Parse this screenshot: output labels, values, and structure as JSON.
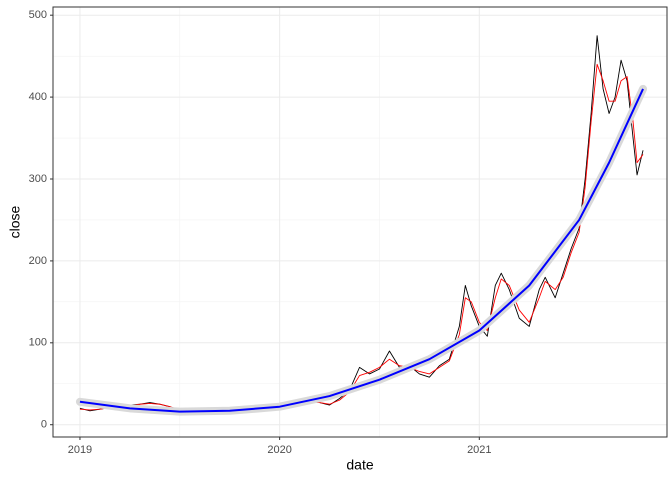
{
  "chart_data": {
    "type": "line",
    "x_label": "date",
    "y_label": "close",
    "xlim": [
      2018.865,
      2021.94
    ],
    "xticks": [
      2019,
      2020,
      2021
    ],
    "ylim": [
      -15,
      510
    ],
    "yticks": [
      0,
      100,
      200,
      300,
      400,
      500
    ],
    "grid": true,
    "x": [
      2019.0,
      2019.05,
      2019.1,
      2019.15,
      2019.2,
      2019.25,
      2019.3,
      2019.35,
      2019.4,
      2019.45,
      2019.5,
      2019.55,
      2019.6,
      2019.65,
      2019.7,
      2019.75,
      2019.8,
      2019.85,
      2019.9,
      2019.95,
      2020.0,
      2020.05,
      2020.1,
      2020.15,
      2020.2,
      2020.25,
      2020.3,
      2020.35,
      2020.4,
      2020.45,
      2020.5,
      2020.55,
      2020.6,
      2020.65,
      2020.7,
      2020.75,
      2020.8,
      2020.85,
      2020.9,
      2020.93,
      2020.96,
      2021.0,
      2021.04,
      2021.08,
      2021.11,
      2021.15,
      2021.2,
      2021.25,
      2021.3,
      2021.33,
      2021.38,
      2021.42,
      2021.46,
      2021.5,
      2021.53,
      2021.56,
      2021.59,
      2021.62,
      2021.65,
      2021.68,
      2021.71,
      2021.74,
      2021.77,
      2021.79,
      2021.82
    ],
    "series": [
      {
        "color": "#000000",
        "width": 0.9,
        "values": [
          20,
          17,
          19,
          21,
          22,
          24,
          25,
          27,
          25,
          22,
          16,
          15,
          14,
          15,
          16,
          17,
          18,
          19,
          20,
          21,
          22,
          23,
          25,
          28,
          27,
          24,
          32,
          42,
          70,
          62,
          68,
          90,
          70,
          72,
          62,
          58,
          72,
          80,
          120,
          170,
          145,
          120,
          108,
          170,
          185,
          165,
          130,
          120,
          165,
          180,
          155,
          185,
          215,
          240,
          300,
          380,
          475,
          410,
          380,
          400,
          445,
          420,
          350,
          305,
          335
        ]
      },
      {
        "color": "#ff0000",
        "width": 0.9,
        "values": [
          19,
          18,
          19,
          21,
          22,
          23,
          25,
          26,
          25,
          22,
          18,
          16,
          15,
          15,
          16,
          17,
          18,
          19,
          20,
          21,
          22,
          23,
          25,
          27,
          27,
          25,
          30,
          40,
          60,
          64,
          70,
          80,
          72,
          70,
          65,
          62,
          70,
          78,
          110,
          155,
          150,
          125,
          115,
          155,
          178,
          170,
          140,
          125,
          155,
          175,
          165,
          180,
          210,
          235,
          290,
          370,
          440,
          420,
          395,
          395,
          420,
          425,
          370,
          320,
          330
        ]
      },
      {
        "color": "#0000ff",
        "width": 2,
        "x": [
          2019.0,
          2019.25,
          2019.5,
          2019.75,
          2020.0,
          2020.25,
          2020.5,
          2020.75,
          2021.0,
          2021.25,
          2021.5,
          2021.65,
          2021.82
        ],
        "values": [
          28,
          20,
          16,
          17,
          22,
          35,
          55,
          80,
          115,
          170,
          250,
          320,
          410
        ]
      }
    ]
  }
}
